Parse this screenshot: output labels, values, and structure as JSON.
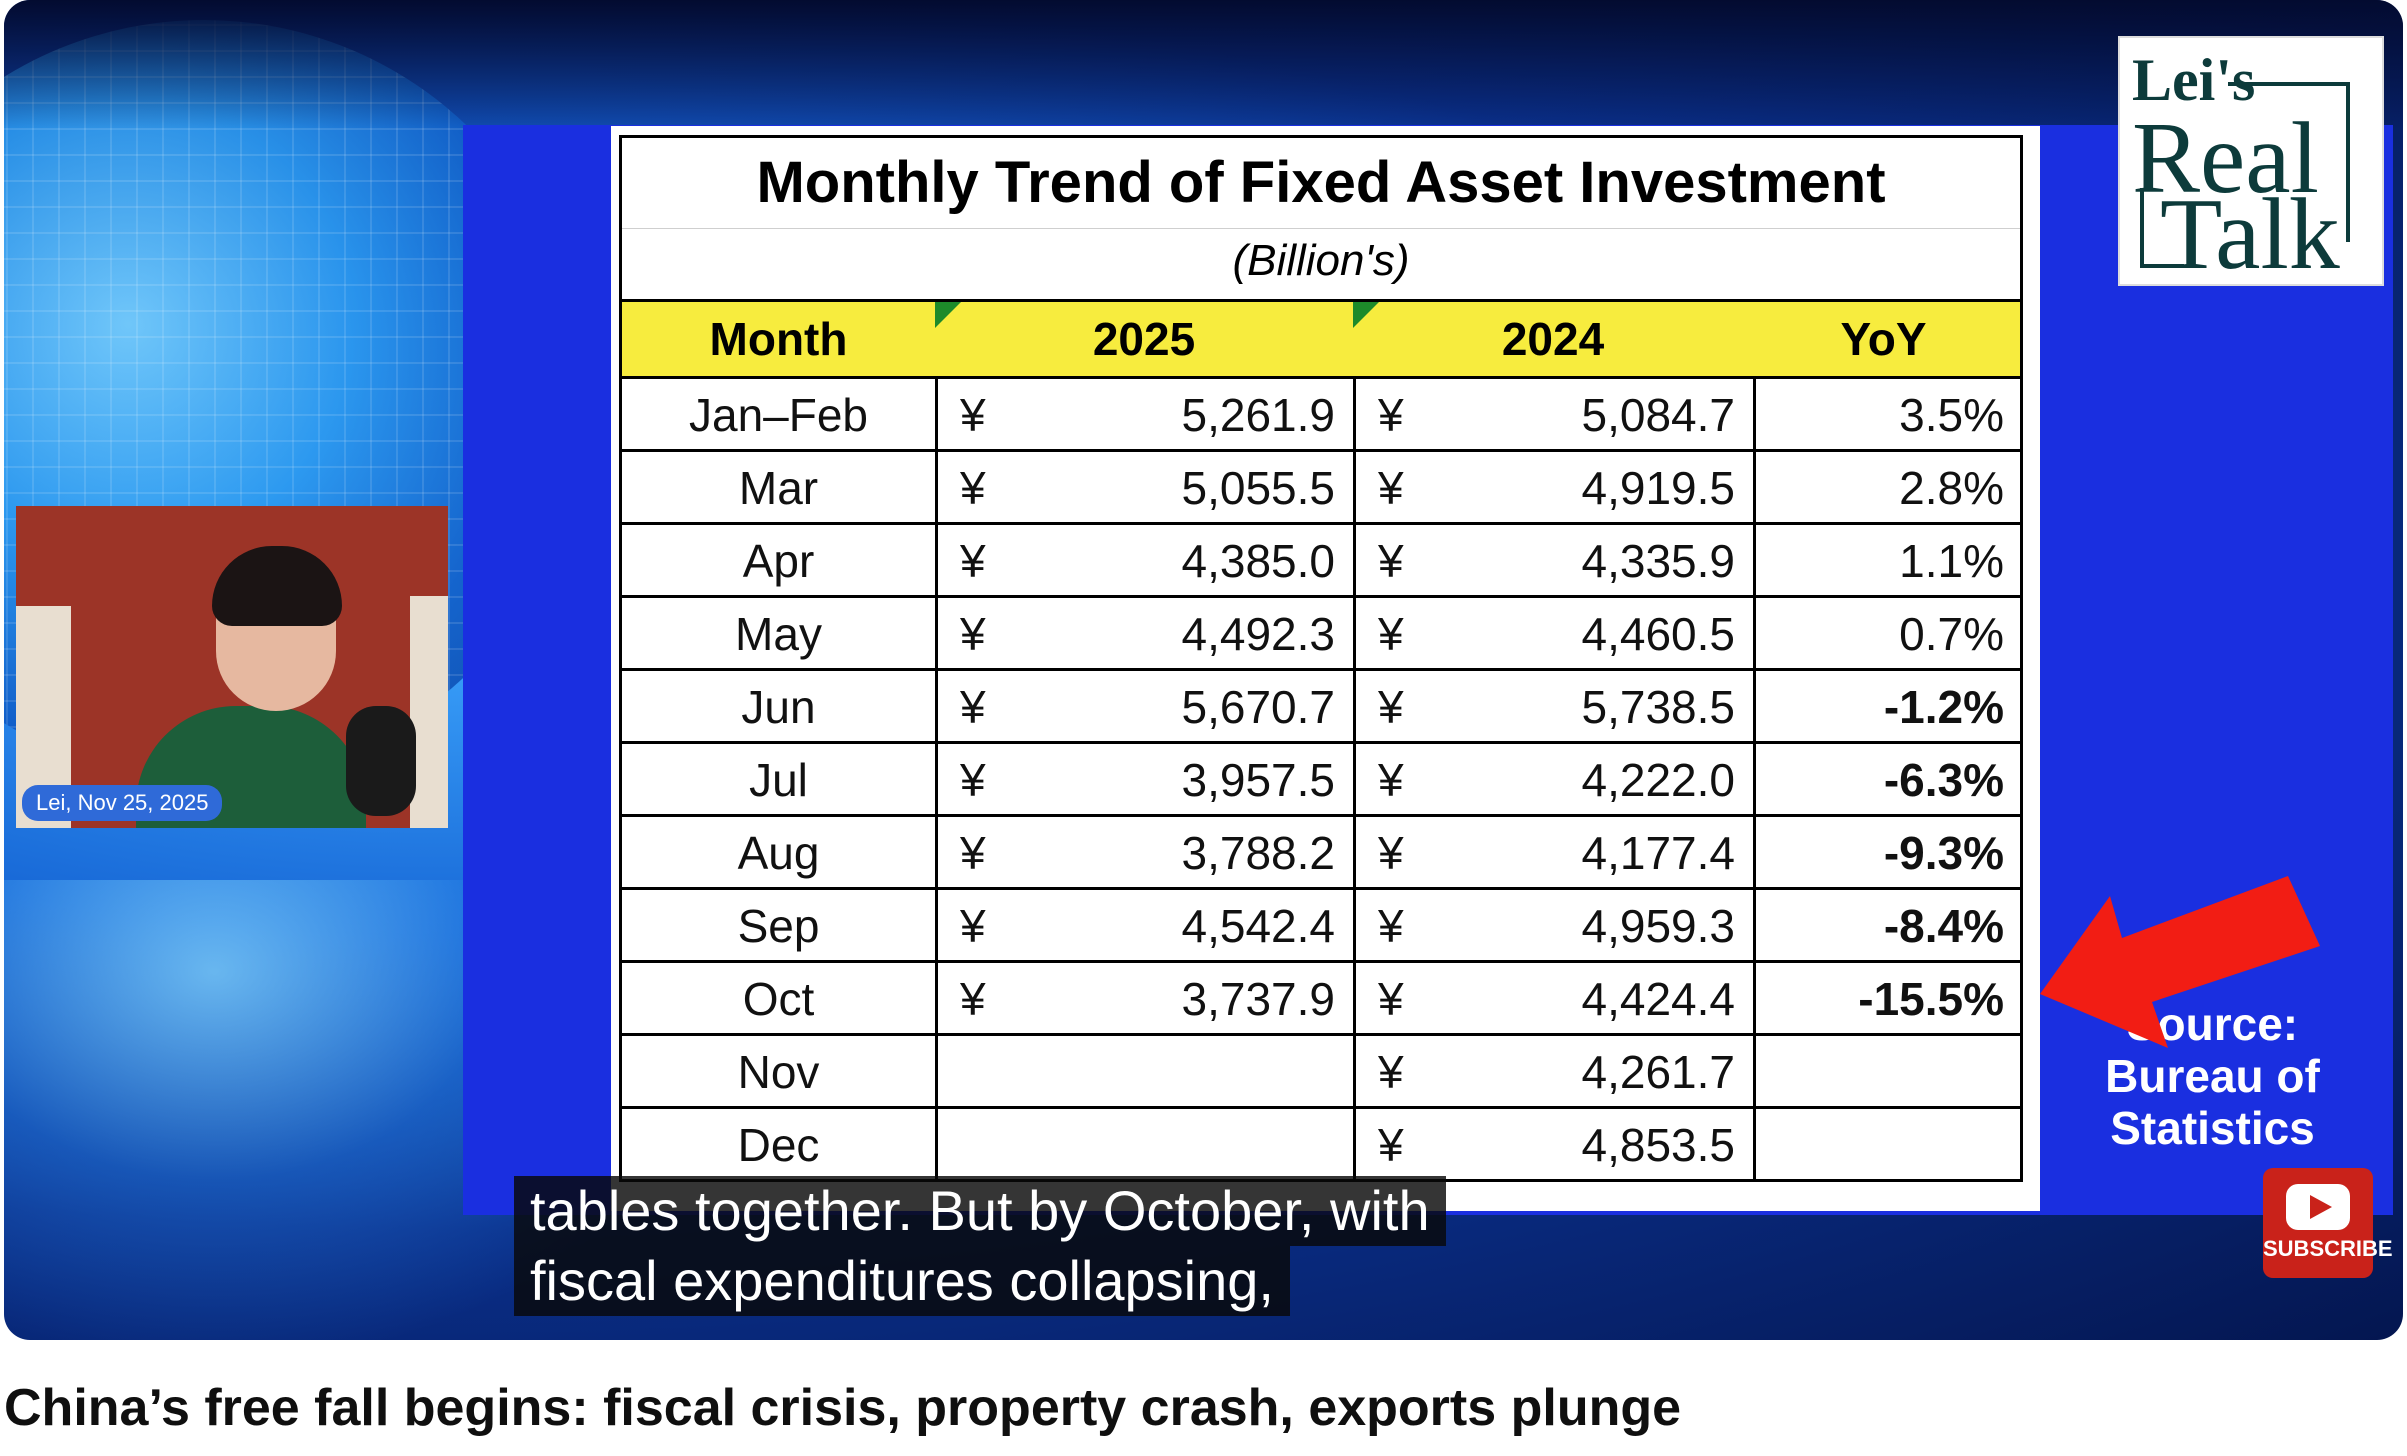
{
  "table": {
    "title": "Monthly Trend of Fixed Asset Investment",
    "subtitle": "(Billion's)",
    "headers": {
      "month": "Month",
      "y2025": "2025",
      "y2024": "2024",
      "yoy": "YoY"
    },
    "currency": "¥",
    "rows": [
      {
        "month": "Jan–Feb",
        "v2025": "5,261.9",
        "v2024": "5,084.7",
        "yoy": "3.5%",
        "negative": false
      },
      {
        "month": "Mar",
        "v2025": "5,055.5",
        "v2024": "4,919.5",
        "yoy": "2.8%",
        "negative": false
      },
      {
        "month": "Apr",
        "v2025": "4,385.0",
        "v2024": "4,335.9",
        "yoy": "1.1%",
        "negative": false
      },
      {
        "month": "May",
        "v2025": "4,492.3",
        "v2024": "4,460.5",
        "yoy": "0.7%",
        "negative": false
      },
      {
        "month": "Jun",
        "v2025": "5,670.7",
        "v2024": "5,738.5",
        "yoy": "-1.2%",
        "negative": true
      },
      {
        "month": "Jul",
        "v2025": "3,957.5",
        "v2024": "4,222.0",
        "yoy": "-6.3%",
        "negative": true
      },
      {
        "month": "Aug",
        "v2025": "3,788.2",
        "v2024": "4,177.4",
        "yoy": "-9.3%",
        "negative": true
      },
      {
        "month": "Sep",
        "v2025": "4,542.4",
        "v2024": "4,959.3",
        "yoy": "-8.4%",
        "negative": true
      },
      {
        "month": "Oct",
        "v2025": "3,737.9",
        "v2024": "4,424.4",
        "yoy": "-15.5%",
        "negative": true
      },
      {
        "month": "Nov",
        "v2025": "",
        "v2024": "4,261.7",
        "yoy": "",
        "negative": false
      },
      {
        "month": "Dec",
        "v2025": "",
        "v2024": "4,853.5",
        "yoy": "",
        "negative": false
      }
    ]
  },
  "source": {
    "line1": "Source:",
    "line2": "Bureau of",
    "line3": "Statistics"
  },
  "logo": {
    "line1": "Lei's",
    "line2": "Real",
    "line3": "Talk"
  },
  "webcam": {
    "label": "Lei, Nov 25, 2025"
  },
  "captions": {
    "line1": "tables together. But by October, with",
    "line2": "fiscal expenditures collapsing,"
  },
  "subscribe": {
    "label": "SUBSCRIBE",
    "icon": "youtube-play-icon"
  },
  "video": {
    "title": "China’s free fall begins: fiscal crisis, property crash, exports plunge"
  },
  "colors": {
    "negative": "#e8261b",
    "header_bg": "#f7ec3e",
    "panel_blue": "#1a2fe0"
  }
}
